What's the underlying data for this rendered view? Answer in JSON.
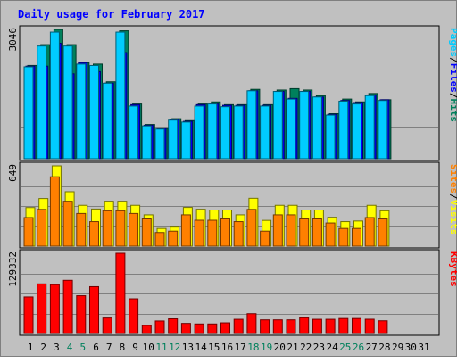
{
  "chart_data": {
    "type": "bar",
    "title": "Daily usage for February 2017",
    "days": [
      "1",
      "2",
      "3",
      "4",
      "5",
      "6",
      "7",
      "8",
      "9",
      "10",
      "11",
      "12",
      "13",
      "14",
      "15",
      "16",
      "17",
      "18",
      "19",
      "20",
      "21",
      "22",
      "23",
      "24",
      "25",
      "26",
      "27",
      "28",
      "29",
      "30",
      "31"
    ],
    "weekend_days": [
      "4",
      "5",
      "11",
      "12",
      "18",
      "19",
      "25",
      "26"
    ],
    "panels": [
      {
        "id": "hits",
        "ymax_label": "3046",
        "ymax": 3046,
        "legend": [
          {
            "label": "Pages",
            "color": "#00ccff"
          },
          {
            "label": "/",
            "color": "#000000"
          },
          {
            "label": "Files",
            "color": "#0000ff"
          },
          {
            "label": "/",
            "color": "#000000"
          },
          {
            "label": "Hits",
            "color": "#00805c"
          }
        ],
        "series": [
          {
            "name": "Hits",
            "color": "#00805c",
            "values": [
              2197,
              2687,
              3046,
              2687,
              2262,
              2229,
              1812,
              3013,
              1290,
              807,
              713,
              943,
              897,
              1290,
              1339,
              1274,
              1274,
              1634,
              1274,
              1618,
              1651,
              1618,
              1487,
              1061,
              1405,
              1339,
              1536,
              1389,
              null,
              null,
              null
            ]
          },
          {
            "name": "Files",
            "color": "#0000ff",
            "values": [
              2180,
              2180,
              2720,
              2000,
              2262,
              2050,
              1780,
              2500,
              1274,
              790,
              713,
              924,
              880,
              1274,
              1290,
              1258,
              1258,
              1601,
              1258,
              1585,
              1422,
              1585,
              1454,
              1044,
              1372,
              1323,
              1503,
              1389,
              null,
              null,
              null
            ]
          },
          {
            "name": "Pages",
            "color": "#00ccff",
            "values": [
              2164,
              2654,
              2982,
              2654,
              2229,
              2196,
              1779,
              2982,
              1241,
              774,
              699,
              910,
              864,
              1241,
              1290,
              1225,
              1241,
              1601,
              1241,
              1585,
              1405,
              1585,
              1454,
              1028,
              1356,
              1290,
              1487,
              1372,
              null,
              null,
              null
            ]
          }
        ]
      },
      {
        "id": "visits",
        "ymax_label": "649",
        "ymax": 649,
        "legend": [
          {
            "label": "Sites",
            "color": "#ff8000"
          },
          {
            "label": "/",
            "color": "#000000"
          },
          {
            "label": "Visits",
            "color": "#ffff00"
          }
        ],
        "series": [
          {
            "name": "Visits",
            "color": "#ffff00",
            "values": [
              312,
              385,
              649,
              440,
              330,
              300,
              363,
              363,
              330,
              253,
              143,
              154,
              313,
              298,
              292,
              292,
              253,
              387,
              208,
              330,
              330,
              292,
              292,
              233,
              198,
              203,
              330,
              286,
              null,
              null,
              null
            ]
          },
          {
            "name": "Sites",
            "color": "#ff8000",
            "values": [
              231,
              297,
              561,
              363,
              264,
              198,
              286,
              286,
              264,
              220,
              110,
              121,
              253,
              209,
              209,
              220,
              198,
              297,
              121,
              253,
              253,
              220,
              220,
              187,
              143,
              143,
              231,
              220,
              null,
              null,
              null
            ]
          }
        ]
      },
      {
        "id": "kbytes",
        "ymax_label": "129332",
        "ymax": 129332,
        "legend": [
          {
            "label": "KBytes",
            "color": "#ff0000"
          }
        ],
        "series": [
          {
            "name": "KBytes",
            "color": "#ff0000",
            "values": [
              59000,
              80000,
              78800,
              85800,
              61000,
              75500,
              25000,
              129332,
              56000,
              13000,
              20200,
              23700,
              16300,
              15400,
              15400,
              17200,
              22900,
              32000,
              22000,
              22000,
              22000,
              25400,
              22900,
              22900,
              24200,
              24200,
              23000,
              20500,
              null,
              null,
              null
            ]
          }
        ]
      }
    ]
  }
}
